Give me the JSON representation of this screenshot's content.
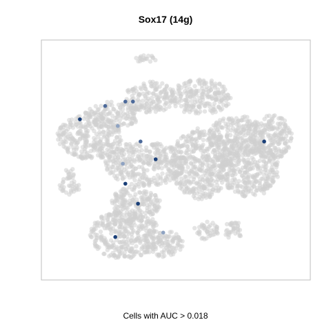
{
  "chart_data": {
    "type": "scatter",
    "title": "Sox17 (14g)",
    "caption": "Cells with AUC > 0.018",
    "xlabel": "",
    "ylabel": "",
    "axes_visible": false,
    "grid": false,
    "legend": "none",
    "colors": {
      "background_cells": "#cfcfcf",
      "high_auc": "#1a3f78",
      "mid_auc": "#4d6a9a",
      "low_auc": "#8fa3c2",
      "frame": "#bdbdbd"
    },
    "note_units": "x/y are arbitrary t-SNE embedding units (0-100); intensity 0-1 = relative AUC",
    "clusters": [
      {
        "cx": 30,
        "cy": 84,
        "rx": 14,
        "ry": 11
      },
      {
        "cx": 34,
        "cy": 70,
        "rx": 10,
        "ry": 8
      },
      {
        "cx": 45,
        "cy": 88,
        "rx": 8,
        "ry": 6
      },
      {
        "cx": 62,
        "cy": 82,
        "rx": 5,
        "ry": 4
      },
      {
        "cx": 73,
        "cy": 82,
        "rx": 4,
        "ry": 4
      },
      {
        "cx": 79,
        "cy": 54,
        "rx": 12,
        "ry": 13
      },
      {
        "cx": 8,
        "cy": 62,
        "rx": 4,
        "ry": 4
      },
      {
        "cx": 8,
        "cy": 56,
        "rx": 2,
        "ry": 2
      },
      {
        "cx": 38,
        "cy": 52,
        "rx": 16,
        "ry": 10
      },
      {
        "cx": 16,
        "cy": 40,
        "rx": 13,
        "ry": 10
      },
      {
        "cx": 25,
        "cy": 30,
        "rx": 11,
        "ry": 6
      },
      {
        "cx": 60,
        "cy": 52,
        "rx": 12,
        "ry": 16
      },
      {
        "cx": 74,
        "cy": 40,
        "rx": 11,
        "ry": 10
      },
      {
        "cx": 60,
        "cy": 22,
        "rx": 12,
        "ry": 8
      },
      {
        "cx": 40,
        "cy": 22,
        "rx": 10,
        "ry": 7
      },
      {
        "cx": 88,
        "cy": 40,
        "rx": 8,
        "ry": 10
      },
      {
        "cx": 38,
        "cy": 5,
        "rx": 4,
        "ry": 2
      }
    ],
    "points": [
      {
        "x": 26,
        "y": 85,
        "intensity": 0.8
      },
      {
        "x": 35,
        "y": 70,
        "intensity": 0.9
      },
      {
        "x": 30,
        "y": 61,
        "intensity": 1.0
      },
      {
        "x": 29,
        "y": 52,
        "intensity": 0.4
      },
      {
        "x": 42,
        "y": 50,
        "intensity": 0.9
      },
      {
        "x": 36,
        "y": 42,
        "intensity": 0.5
      },
      {
        "x": 12,
        "y": 32,
        "intensity": 1.0
      },
      {
        "x": 27,
        "y": 35,
        "intensity": 0.4
      },
      {
        "x": 22,
        "y": 26,
        "intensity": 0.6
      },
      {
        "x": 30,
        "y": 24,
        "intensity": 0.7
      },
      {
        "x": 33,
        "y": 24,
        "intensity": 0.6
      },
      {
        "x": 85,
        "y": 42,
        "intensity": 0.9
      },
      {
        "x": 45,
        "y": 83,
        "intensity": 0.3
      }
    ]
  }
}
